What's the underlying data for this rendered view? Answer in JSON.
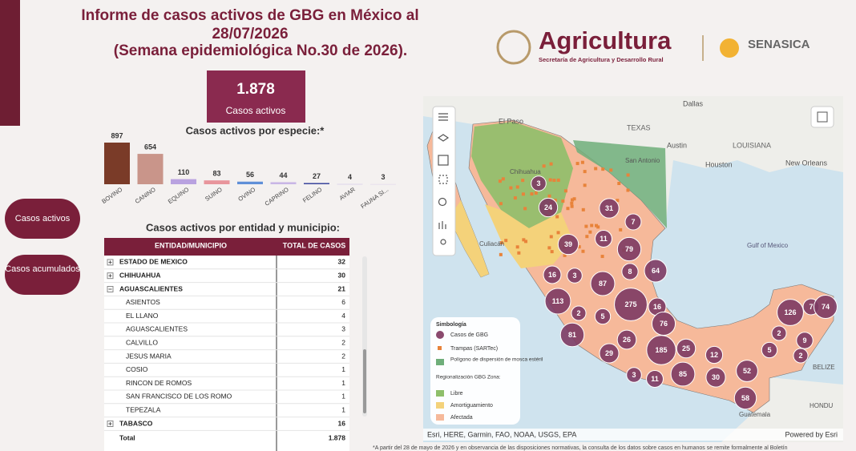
{
  "header": {
    "title_line1": "Informe de casos activos de GBG en México al",
    "title_line2": "28/07/2026",
    "title_line3": "(Semana epidemiológica No.30 de 2026)."
  },
  "logos": {
    "agricultura": "Agricultura",
    "agricultura_sub": "Secretaría de Agricultura y Desarrollo Rural",
    "senasica": "SENASICA"
  },
  "kpi": {
    "value": "1.878",
    "label": "Casos activos"
  },
  "nav": [
    "Casos activos",
    "Casos acumulados"
  ],
  "chart_data": {
    "type": "bar",
    "title": "Casos activos por especie:*",
    "categories": [
      "BOVINO",
      "CANINO",
      "EQUINO",
      "SUINO",
      "OVINO",
      "CAPRINO",
      "FELINO",
      "AVIAR",
      "FAUNA SI..."
    ],
    "values": [
      897,
      654,
      110,
      83,
      56,
      44,
      27,
      4,
      3
    ],
    "colors": [
      "#7a3b28",
      "#c9958a",
      "#b9a2e0",
      "#e8959c",
      "#5f8fd8",
      "#c8b6e6",
      "#3f4a9e",
      "#c9b9e6",
      "#d9cde8"
    ]
  },
  "table": {
    "title": "Casos activos por entidad y municipio:",
    "columns": [
      "ENTIDAD/MUNICIPIO",
      "TOTAL DE CASOS"
    ],
    "rows": [
      {
        "name": "ESTADO DE MEXICO",
        "total": 32,
        "level": "state",
        "expanded": false
      },
      {
        "name": "CHIHUAHUA",
        "total": 30,
        "level": "state",
        "expanded": false
      },
      {
        "name": "AGUASCALIENTES",
        "total": 21,
        "level": "state",
        "expanded": true
      },
      {
        "name": "ASIENTOS",
        "total": 6,
        "level": "municipality"
      },
      {
        "name": "EL LLANO",
        "total": 4,
        "level": "municipality"
      },
      {
        "name": "AGUASCALIENTES",
        "total": 3,
        "level": "municipality"
      },
      {
        "name": "CALVILLO",
        "total": 2,
        "level": "municipality"
      },
      {
        "name": "JESUS MARIA",
        "total": 2,
        "level": "municipality"
      },
      {
        "name": "COSIO",
        "total": 1,
        "level": "municipality"
      },
      {
        "name": "RINCON DE ROMOS",
        "total": 1,
        "level": "municipality"
      },
      {
        "name": "SAN FRANCISCO DE LOS ROMO",
        "total": 1,
        "level": "municipality"
      },
      {
        "name": "TEPEZALA",
        "total": 1,
        "level": "municipality"
      },
      {
        "name": "TABASCO",
        "total": 16,
        "level": "state",
        "expanded": false
      }
    ],
    "total": {
      "name": "Total",
      "value": "1.878"
    }
  },
  "map": {
    "places": [
      "Dallas",
      "El Paso",
      "TEXAS",
      "Austin",
      "LOUISIANA",
      "Houston",
      "New Orleans",
      "San Antonio",
      "Chihuahua",
      "Culiacán",
      "Gulf of Mexico",
      "BELIZE",
      "Guatemala",
      "HONDU"
    ],
    "markers": [
      3,
      24,
      31,
      7,
      39,
      11,
      79,
      64,
      16,
      3,
      8,
      87,
      113,
      2,
      275,
      16,
      5,
      76,
      81,
      26,
      29,
      185,
      25,
      12,
      3,
      11,
      85,
      30,
      52,
      58,
      126,
      7,
      74,
      2,
      9,
      5,
      2
    ],
    "legend": {
      "title": "Simbología",
      "cases": "Casos de GBG",
      "traps": "Trampas (SARTec)",
      "polygon": "Polígono de dispersión de mosca estéril",
      "zone_title": "Regionalización GBG Zona:",
      "zones": [
        "Libre",
        "Amortiguamiento",
        "Afectada"
      ]
    },
    "attribution": "Esri, HERE, Garmin, FAO, NOAA, USGS, EPA",
    "powered": "Powered by Esri"
  },
  "footnote": "*A partir del 28 de mayo de 2026 y en observancia de las disposiciones normativas, la consulta de los datos sobre casos en humanos se remite formalmente al Boletín"
}
